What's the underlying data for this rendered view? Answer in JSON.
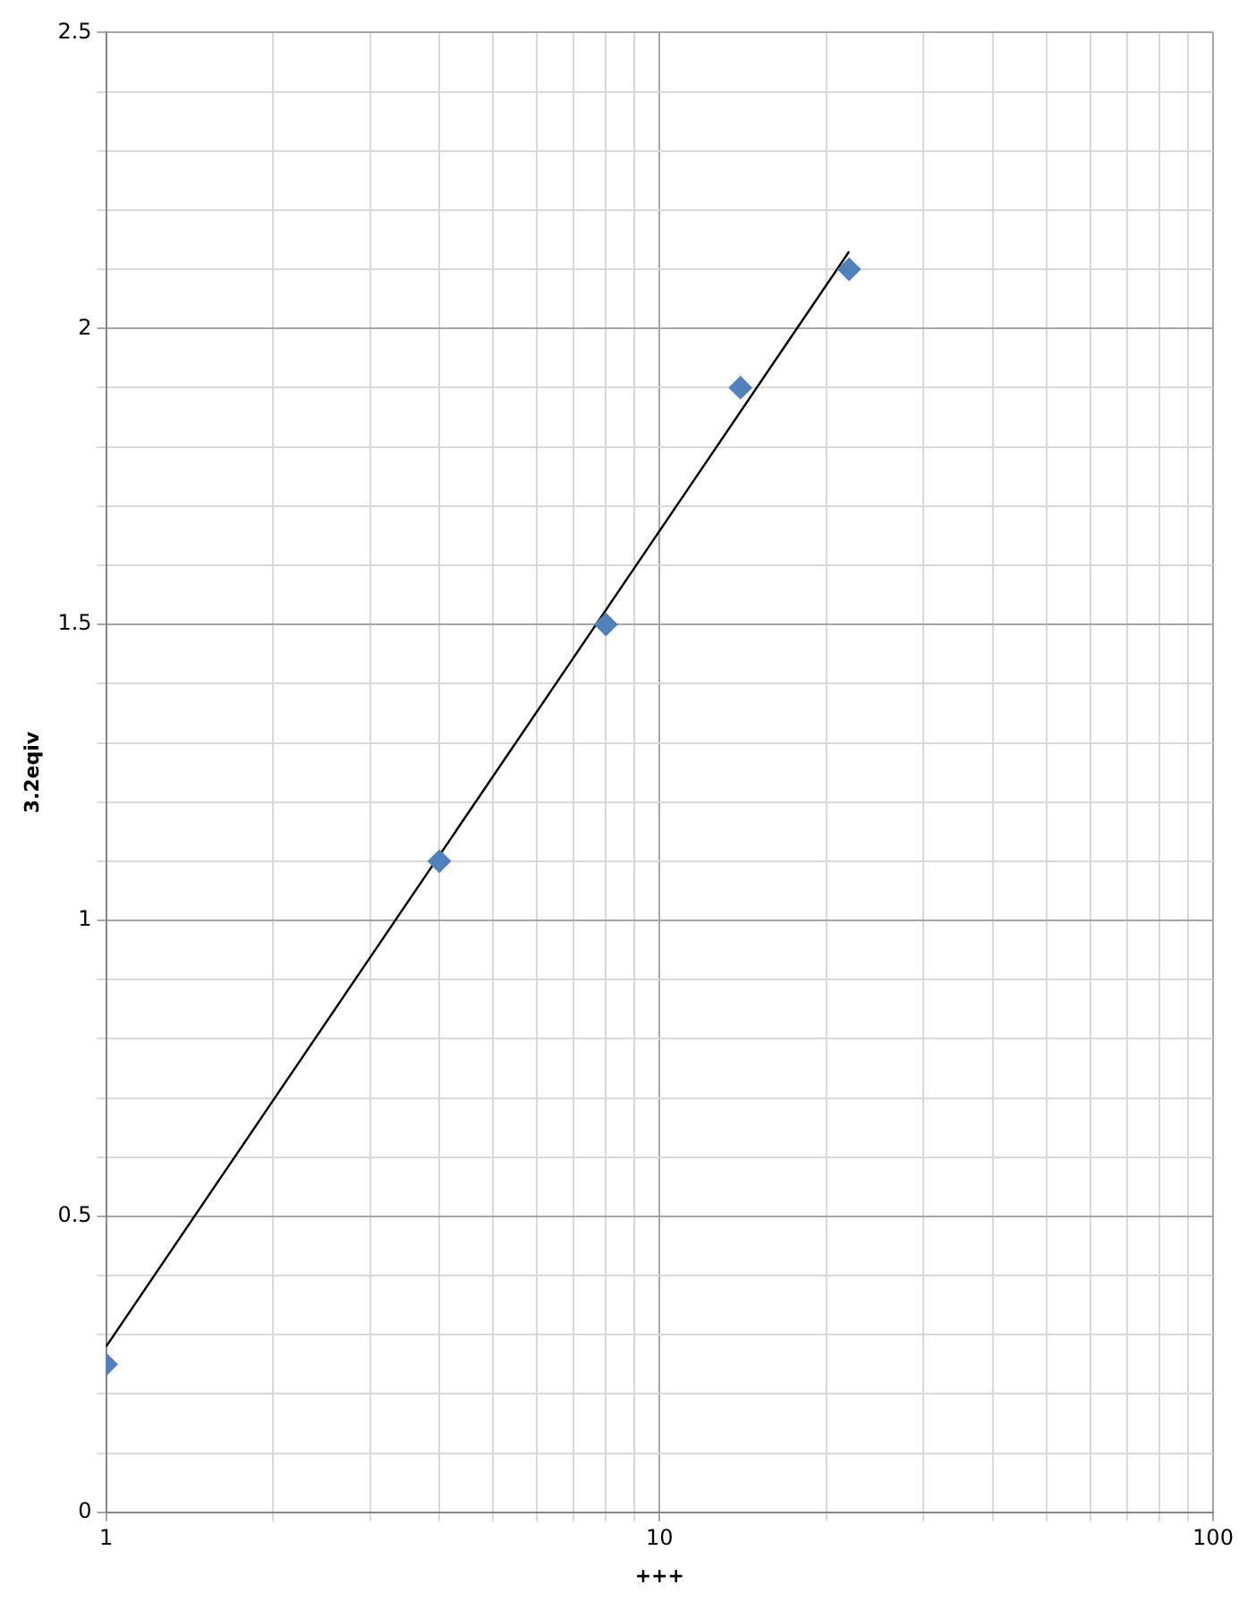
{
  "chart_data": {
    "type": "scatter",
    "xlabel": "+++",
    "ylabel": "3.2eqiv",
    "log": "x",
    "grid": true,
    "legend": false,
    "xlim": [
      1,
      100
    ],
    "xticks": [
      1,
      {
        "value": 2,
        "label": null
      },
      {
        "value": 3,
        "label": null
      },
      {
        "value": 4,
        "label": null
      },
      {
        "value": 5,
        "label": null
      },
      {
        "value": 6,
        "label": null
      },
      {
        "value": 7,
        "label": null
      },
      {
        "value": 8,
        "label": null
      },
      {
        "value": 9,
        "label": null
      },
      10,
      {
        "value": 20,
        "label": null
      },
      {
        "value": 30,
        "label": null
      },
      {
        "value": 40,
        "label": null
      },
      {
        "value": 50,
        "label": null
      },
      {
        "value": 60,
        "label": null
      },
      {
        "value": 70,
        "label": null
      },
      {
        "value": 80,
        "label": null
      },
      {
        "value": 90,
        "label": null
      },
      100
    ],
    "ylim": [
      0,
      2.5
    ],
    "yticks": [
      0,
      {
        "value": 0.1,
        "label": null
      },
      {
        "value": 0.2,
        "label": null
      },
      {
        "value": 0.3,
        "label": null
      },
      {
        "value": 0.4,
        "label": null
      },
      0.5,
      {
        "value": 0.6,
        "label": null
      },
      {
        "value": 0.7,
        "label": null
      },
      {
        "value": 0.8,
        "label": null
      },
      {
        "value": 0.9,
        "label": null
      },
      1,
      {
        "value": 1.1,
        "label": null
      },
      {
        "value": 1.2,
        "label": null
      },
      {
        "value": 1.3,
        "label": null
      },
      {
        "value": 1.4,
        "label": null
      },
      1.5,
      {
        "value": 1.6,
        "label": null
      },
      {
        "value": 1.7,
        "label": null
      },
      {
        "value": 1.8,
        "label": null
      },
      {
        "value": 1.9,
        "label": null
      },
      2,
      {
        "value": 2.1,
        "label": null
      },
      {
        "value": 2.2,
        "label": null
      },
      {
        "value": 2.3,
        "label": null
      },
      {
        "value": 2.4,
        "label": null
      },
      2.5
    ],
    "series": [
      {
        "type": "scatter",
        "color": "#4f81bd",
        "marker": "diamond",
        "x": [
          1,
          4,
          8,
          14,
          22
        ],
        "values": [
          0.25,
          1.1,
          1.5,
          1.9,
          2.1
        ]
      },
      {
        "type": "line",
        "color": "#000000",
        "marker": "none",
        "line_style": "solid",
        "x": [
          1,
          22
        ],
        "values": [
          0.28,
          2.13
        ]
      }
    ]
  }
}
